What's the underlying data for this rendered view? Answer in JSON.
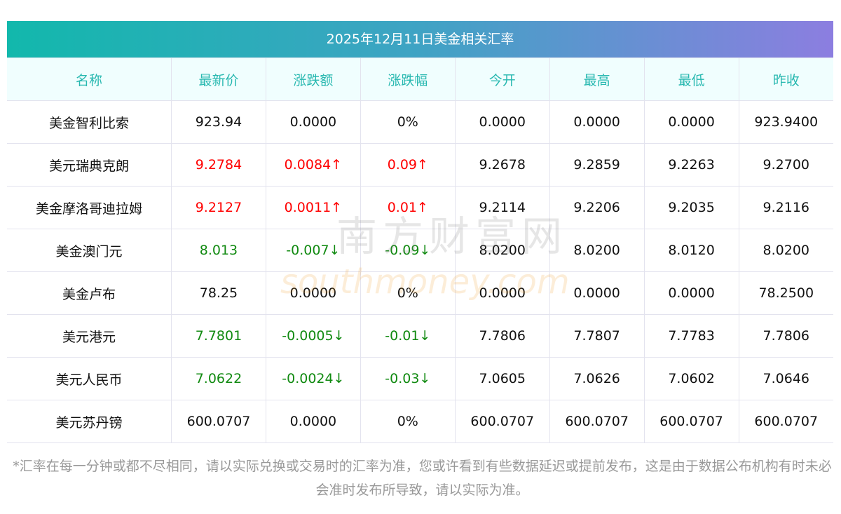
{
  "title": "2025年12月11日美金相关汇率",
  "headers": [
    "名称",
    "最新价",
    "涨跌额",
    "涨跌幅",
    "今开",
    "最高",
    "最低",
    "昨收"
  ],
  "rows": [
    {
      "name": "美金智利比索",
      "price": "923.94",
      "chg": "0.0000",
      "pct": "0%",
      "open": "0.0000",
      "high": "0.0000",
      "low": "0.0000",
      "prev": "923.9400",
      "dir": ""
    },
    {
      "name": "美元瑞典克朗",
      "price": "9.2784",
      "chg": "0.0084↑",
      "pct": "0.09↑",
      "open": "9.2678",
      "high": "9.2859",
      "low": "9.2263",
      "prev": "9.2700",
      "dir": "up"
    },
    {
      "name": "美金摩洛哥迪拉姆",
      "price": "9.2127",
      "chg": "0.0011↑",
      "pct": "0.01↑",
      "open": "9.2114",
      "high": "9.2206",
      "low": "9.2035",
      "prev": "9.2116",
      "dir": "up"
    },
    {
      "name": "美金澳门元",
      "price": "8.013",
      "chg": "-0.007↓",
      "pct": "-0.09↓",
      "open": "8.0200",
      "high": "8.0200",
      "low": "8.0120",
      "prev": "8.0200",
      "dir": "down"
    },
    {
      "name": "美金卢布",
      "price": "78.25",
      "chg": "0.0000",
      "pct": "0%",
      "open": "0.0000",
      "high": "0.0000",
      "low": "0.0000",
      "prev": "78.2500",
      "dir": ""
    },
    {
      "name": "美元港元",
      "price": "7.7801",
      "chg": "-0.0005↓",
      "pct": "-0.01↓",
      "open": "7.7806",
      "high": "7.7807",
      "low": "7.7783",
      "prev": "7.7806",
      "dir": "down"
    },
    {
      "name": "美元人民币",
      "price": "7.0622",
      "chg": "-0.0024↓",
      "pct": "-0.03↓",
      "open": "7.0605",
      "high": "7.0626",
      "low": "7.0602",
      "prev": "7.0646",
      "dir": "down"
    },
    {
      "name": "美元苏丹镑",
      "price": "600.0707",
      "chg": "0.0000",
      "pct": "0%",
      "open": "600.0707",
      "high": "600.0707",
      "low": "600.0707",
      "prev": "600.0707",
      "dir": ""
    }
  ],
  "note": "*汇率在每一分钟或都不尽相同，请以实际兑换或交易时的汇率为准，您或许看到有些数据延迟或提前发布，这是由于数据公布机构有时未必会准时发布所导致，请以实际为准。",
  "watermark": {
    "cn": "南方财富网",
    "en": "southmoney.com"
  },
  "colors": {
    "up": "#ff0000",
    "down": "#118a11",
    "header_text": "#27b8b0"
  }
}
